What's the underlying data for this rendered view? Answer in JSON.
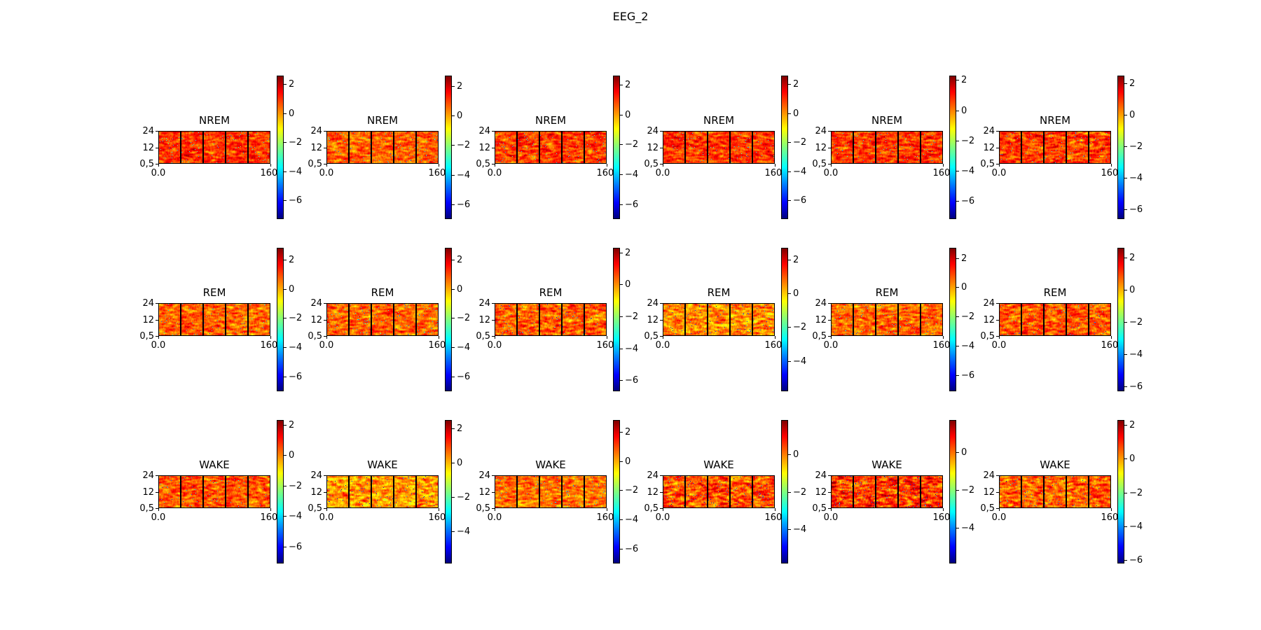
{
  "title": "EEG_2",
  "chart_data": {
    "type": "heatmap",
    "title": "EEG_2",
    "grid": "3 rows x 6 columns of spectrogram panels, each with its own colorbar",
    "colormap": "jet",
    "x_ticks": [
      "0.0",
      "160."
    ],
    "y_ticks": [
      "0,5",
      "12",
      "24"
    ],
    "segments_per_panel": 5,
    "panels": [
      {
        "title": "NREM",
        "colorbar_ticks": [
          2,
          0,
          -2,
          -4,
          -6
        ],
        "clim": [
          -7.3,
          2.6
        ],
        "mean": 0.8
      },
      {
        "title": "NREM",
        "colorbar_ticks": [
          2,
          0,
          -2,
          -4,
          -6
        ],
        "clim": [
          -7.0,
          2.7
        ],
        "mean": 0.6
      },
      {
        "title": "NREM",
        "colorbar_ticks": [
          2,
          0,
          -2,
          -4,
          -6
        ],
        "clim": [
          -7.0,
          2.6
        ],
        "mean": 0.8
      },
      {
        "title": "NREM",
        "colorbar_ticks": [
          2,
          0,
          -2,
          -4,
          -6
        ],
        "clim": [
          -7.3,
          2.6
        ],
        "mean": 0.8
      },
      {
        "title": "NREM",
        "colorbar_ticks": [
          2,
          0,
          -2,
          -4,
          -6
        ],
        "clim": [
          -7.2,
          2.3
        ],
        "mean": 0.6
      },
      {
        "title": "NREM",
        "colorbar_ticks": [
          2,
          0,
          -2,
          -4,
          -6
        ],
        "clim": [
          -6.6,
          2.5
        ],
        "mean": 0.8
      },
      {
        "title": "REM",
        "colorbar_ticks": [
          2,
          0,
          -2,
          -4,
          -6
        ],
        "clim": [
          -7.0,
          2.8
        ],
        "mean": 0.6
      },
      {
        "title": "REM",
        "colorbar_ticks": [
          2,
          0,
          -2,
          -4,
          -6
        ],
        "clim": [
          -7.0,
          2.8
        ],
        "mean": 0.6
      },
      {
        "title": "REM",
        "colorbar_ticks": [
          2,
          0,
          -2,
          -4,
          -6
        ],
        "clim": [
          -6.7,
          2.3
        ],
        "mean": 0.3
      },
      {
        "title": "REM",
        "colorbar_ticks": [
          2,
          0,
          -2,
          -4
        ],
        "clim": [
          -5.8,
          2.7
        ],
        "mean": 0.5
      },
      {
        "title": "REM",
        "colorbar_ticks": [
          2,
          0,
          -2,
          -4,
          -6
        ],
        "clim": [
          -7.1,
          2.7
        ],
        "mean": 0.5
      },
      {
        "title": "REM",
        "colorbar_ticks": [
          2,
          0,
          -2,
          -4,
          -6
        ],
        "clim": [
          -6.3,
          2.6
        ],
        "mean": 0.7
      },
      {
        "title": "WAKE",
        "colorbar_ticks": [
          2,
          0,
          -2,
          -4,
          -6
        ],
        "clim": [
          -7.1,
          2.3
        ],
        "mean": 0.3
      },
      {
        "title": "WAKE",
        "colorbar_ticks": [
          2,
          0,
          -2,
          -4
        ],
        "clim": [
          -5.9,
          2.5
        ],
        "mean": 0.2
      },
      {
        "title": "WAKE",
        "colorbar_ticks": [
          2,
          0,
          -2,
          -4,
          -6
        ],
        "clim": [
          -7.0,
          2.8
        ],
        "mean": 0.5
      },
      {
        "title": "WAKE",
        "colorbar_ticks": [
          0,
          -2,
          -4
        ],
        "clim": [
          -5.8,
          1.8
        ],
        "mean": 0.2
      },
      {
        "title": "WAKE",
        "colorbar_ticks": [
          0,
          -2,
          -4
        ],
        "clim": [
          -5.9,
          1.7
        ],
        "mean": 0.3
      },
      {
        "title": "WAKE",
        "colorbar_ticks": [
          2,
          0,
          -2,
          -4,
          -6
        ],
        "clim": [
          -6.2,
          2.3
        ],
        "mean": 0.4
      }
    ]
  }
}
